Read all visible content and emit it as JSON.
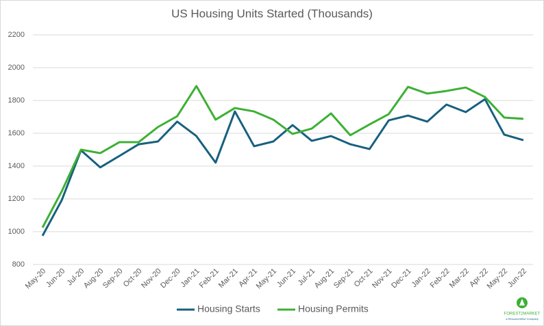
{
  "chart_data": {
    "type": "line",
    "title": "US Housing Units Started (Thousands)",
    "categories": [
      "May-20",
      "Jun-20",
      "Jul-20",
      "Aug-20",
      "Sep-20",
      "Oct-20",
      "Nov-20",
      "Dec-20",
      "Jan-21",
      "Feb-21",
      "Mar-21",
      "Apr-21",
      "May-21",
      "Jun-21",
      "Jul-21",
      "Aug-21",
      "Sep-21",
      "Oct-21",
      "Nov-21",
      "Dec-21",
      "Jan-22",
      "Feb-22",
      "Mar-22",
      "Apr-22",
      "May-22",
      "Jun-22"
    ],
    "series": [
      {
        "name": "Housing Starts",
        "color": "#17607f",
        "values": [
          975,
          1192,
          1496,
          1392,
          1462,
          1533,
          1550,
          1671,
          1583,
          1421,
          1733,
          1521,
          1550,
          1650,
          1554,
          1583,
          1533,
          1504,
          1679,
          1708,
          1671,
          1775,
          1729,
          1808,
          1592,
          1558
        ]
      },
      {
        "name": "Housing Permits",
        "color": "#3cb034",
        "values": [
          1025,
          1246,
          1500,
          1479,
          1546,
          1546,
          1638,
          1704,
          1888,
          1683,
          1754,
          1733,
          1683,
          1596,
          1629,
          1721,
          1588,
          1654,
          1717,
          1883,
          1842,
          1858,
          1879,
          1821,
          1696,
          1688
        ]
      }
    ],
    "ylim": [
      800,
      2200
    ],
    "yticks": [
      800,
      1000,
      1200,
      1400,
      1600,
      1800,
      2000,
      2200
    ],
    "grid": true,
    "legend": "bottom",
    "logo": {
      "name": "FOREST2MARKET",
      "tagline": "a ResourceWise Company"
    }
  }
}
